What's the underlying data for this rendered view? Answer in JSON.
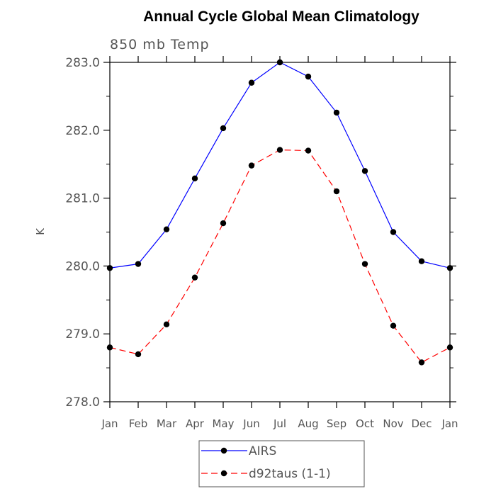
{
  "chart_data": {
    "type": "line",
    "title": "Annual Cycle Global Mean Climatology",
    "subtitle": "850 mb Temp",
    "xlabel": "",
    "ylabel": "K",
    "categories": [
      "Jan",
      "Feb",
      "Mar",
      "Apr",
      "May",
      "Jun",
      "Jul",
      "Aug",
      "Sep",
      "Oct",
      "Nov",
      "Dec",
      "Jan"
    ],
    "ylim": [
      278.0,
      283.0
    ],
    "yticks": [
      "278.0",
      "279.0",
      "280.0",
      "281.0",
      "282.0",
      "283.0"
    ],
    "grid": false,
    "legend_position": "bottom-center",
    "series": [
      {
        "name": "AIRS",
        "color": "#0000ff",
        "dash": "solid",
        "values": [
          279.97,
          280.03,
          280.54,
          281.29,
          282.03,
          282.7,
          283.0,
          282.79,
          282.26,
          281.4,
          280.5,
          280.07,
          279.97
        ]
      },
      {
        "name": "d92taus (1-1)",
        "color": "#ff0000",
        "dash": "dashed",
        "values": [
          278.8,
          278.7,
          279.14,
          279.83,
          280.63,
          281.48,
          281.71,
          281.7,
          281.1,
          280.03,
          279.12,
          278.58,
          278.8
        ]
      }
    ]
  }
}
